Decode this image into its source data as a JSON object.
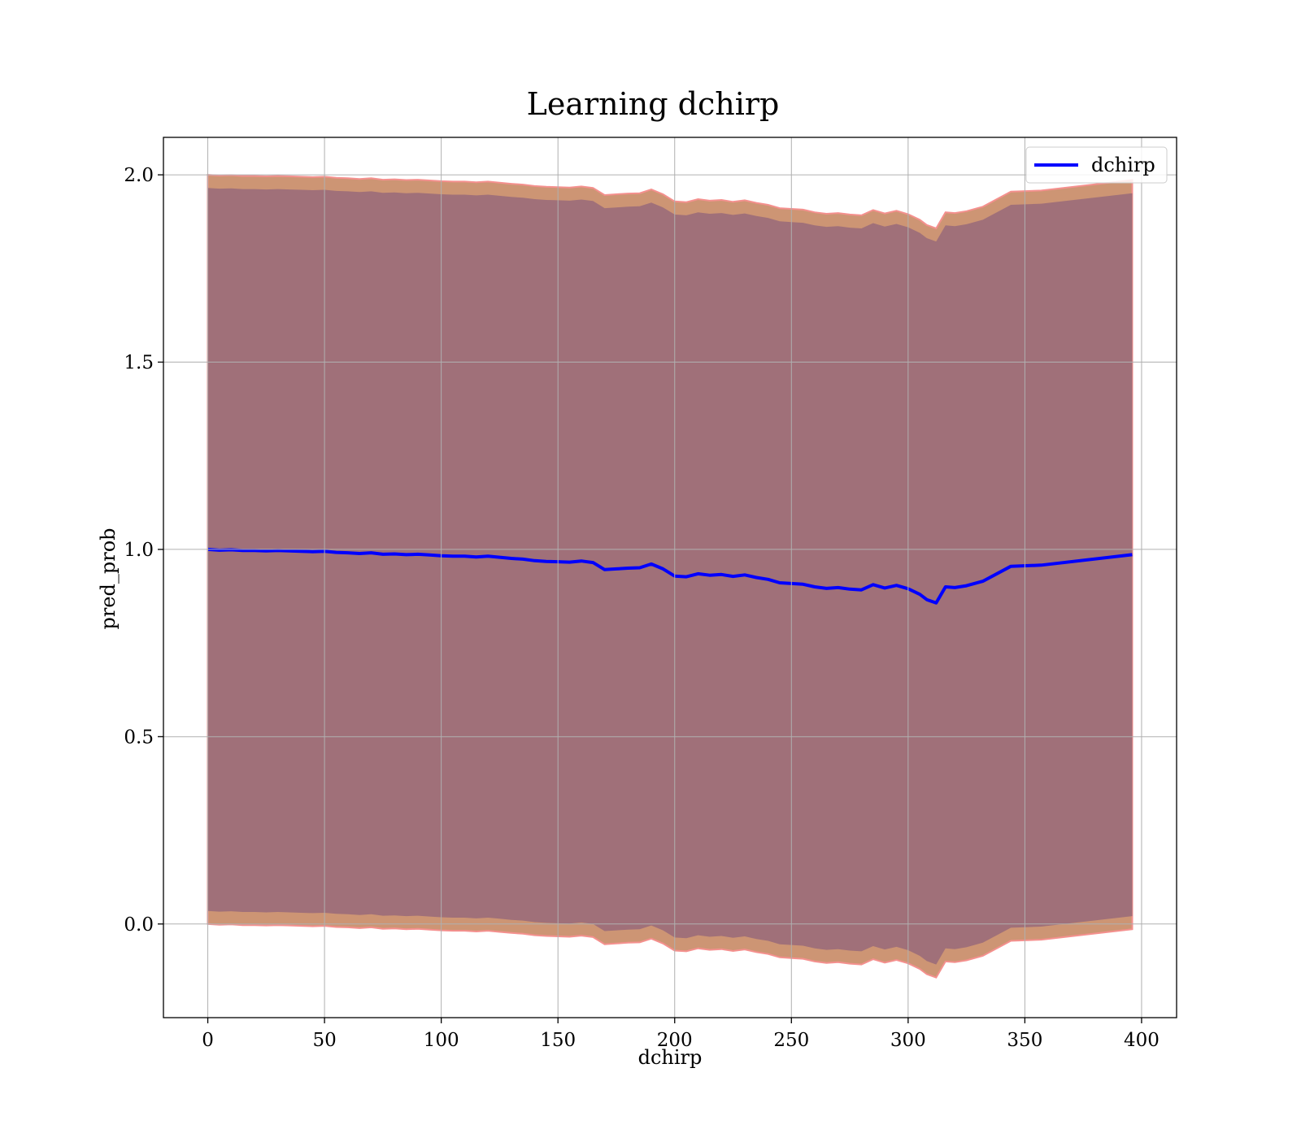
{
  "chart_data": {
    "type": "line",
    "title": "Learning dchirp",
    "xlabel": "dchirp",
    "ylabel": "pred_prob",
    "xlim": [
      -19,
      415
    ],
    "ylim": [
      -0.25,
      2.1
    ],
    "x_ticks": [
      0,
      50,
      100,
      150,
      200,
      250,
      300,
      350,
      400
    ],
    "y_ticks": [
      0.0,
      0.5,
      1.0,
      1.5,
      2.0
    ],
    "x_tick_labels": [
      "0",
      "50",
      "100",
      "150",
      "200",
      "250",
      "300",
      "350",
      "400"
    ],
    "y_tick_labels": [
      "0.0",
      "0.5",
      "1.0",
      "1.5",
      "2.0"
    ],
    "grid": true,
    "legend": {
      "position": "top-right",
      "entries": [
        "dchirp"
      ]
    },
    "colors": {
      "line": "#0000ff",
      "outer_band": "#cd9574",
      "outer_band_edge": "#f4908e",
      "inner_band": "#a07079"
    },
    "series": [
      {
        "name": "dchirp",
        "x": [
          0,
          5,
          10,
          15,
          20,
          25,
          30,
          35,
          40,
          45,
          50,
          55,
          60,
          65,
          70,
          75,
          80,
          85,
          90,
          95,
          100,
          105,
          110,
          115,
          120,
          125,
          130,
          135,
          140,
          145,
          150,
          155,
          160,
          165,
          170,
          175,
          180,
          185,
          190,
          195,
          200,
          205,
          210,
          215,
          220,
          225,
          230,
          235,
          240,
          245,
          250,
          255,
          260,
          265,
          270,
          275,
          280,
          285,
          290,
          295,
          300,
          305,
          308,
          312,
          316,
          320,
          325,
          332,
          344,
          357,
          396
        ],
        "y": [
          1.0,
          0.998,
          0.999,
          0.997,
          0.997,
          0.996,
          0.997,
          0.996,
          0.995,
          0.994,
          0.995,
          0.992,
          0.991,
          0.989,
          0.991,
          0.987,
          0.988,
          0.986,
          0.987,
          0.985,
          0.983,
          0.982,
          0.982,
          0.98,
          0.982,
          0.979,
          0.976,
          0.974,
          0.97,
          0.968,
          0.967,
          0.966,
          0.969,
          0.965,
          0.946,
          0.948,
          0.95,
          0.951,
          0.961,
          0.948,
          0.929,
          0.927,
          0.935,
          0.931,
          0.933,
          0.928,
          0.932,
          0.925,
          0.92,
          0.911,
          0.909,
          0.907,
          0.9,
          0.896,
          0.898,
          0.894,
          0.892,
          0.906,
          0.897,
          0.904,
          0.895,
          0.88,
          0.866,
          0.857,
          0.9,
          0.898,
          0.903,
          0.915,
          0.955,
          0.958,
          0.986
        ],
        "outer_band_offset": 1.0,
        "inner_band_offset": 0.965
      }
    ]
  }
}
